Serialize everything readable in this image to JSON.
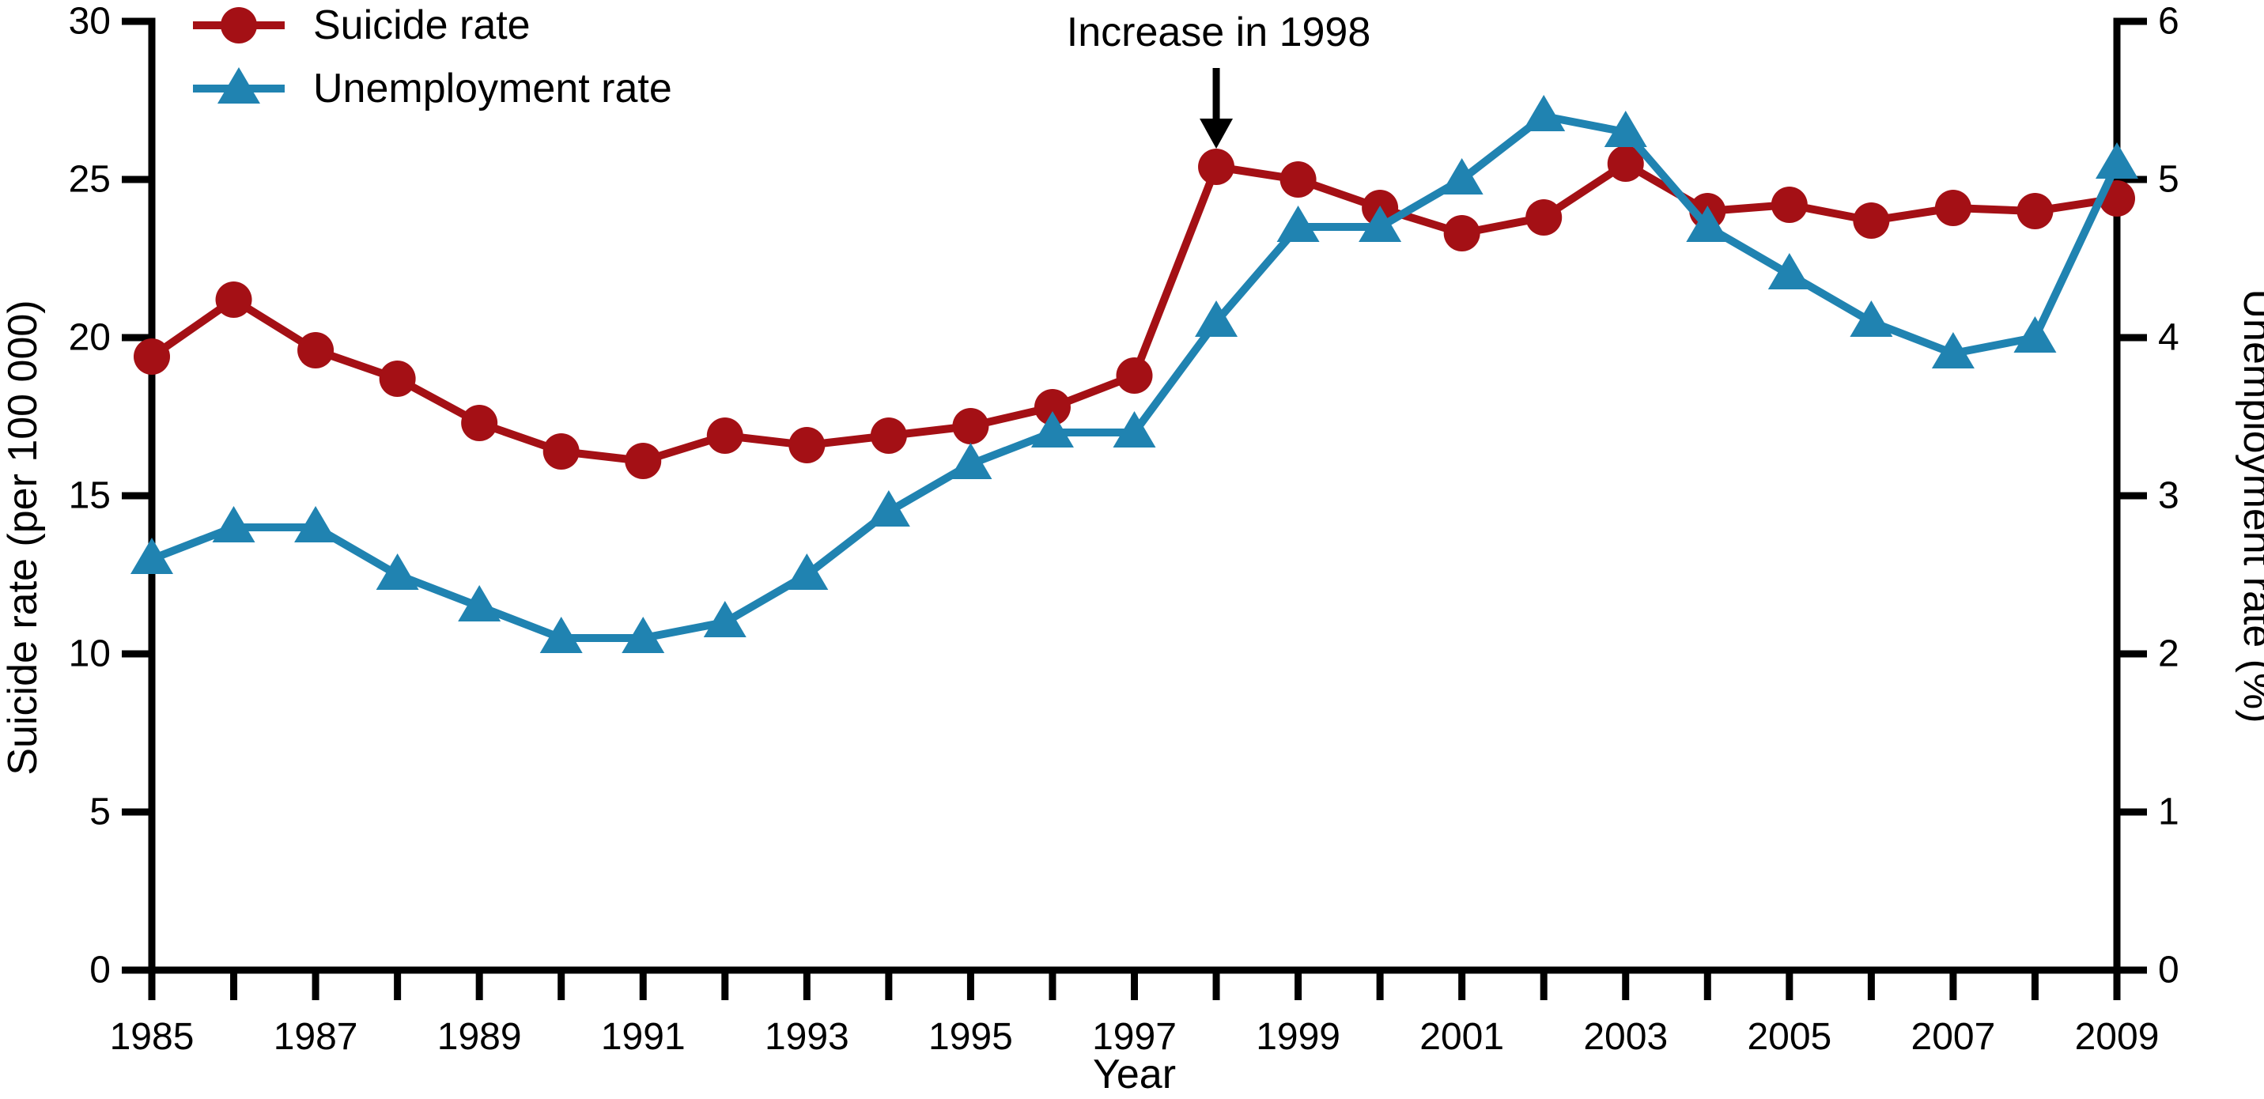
{
  "chart_data": {
    "type": "line",
    "title": "",
    "xlabel": "Year",
    "x": [
      1985,
      1986,
      1987,
      1988,
      1989,
      1990,
      1991,
      1992,
      1993,
      1994,
      1995,
      1996,
      1997,
      1998,
      1999,
      2000,
      2001,
      2002,
      2003,
      2004,
      2005,
      2006,
      2007,
      2008,
      2009
    ],
    "x_tick_labels": [
      "1985",
      "1987",
      "1989",
      "1991",
      "1993",
      "1995",
      "1997",
      "1999",
      "2001",
      "2003",
      "2005",
      "2007",
      "2009"
    ],
    "x_range": [
      1985,
      2009
    ],
    "grid": false,
    "legend_position": "top-left",
    "left_axis": {
      "label": "Suicide rate (per 100 000)",
      "min": 0,
      "max": 30,
      "ticks": [
        "0",
        "5",
        "10",
        "15",
        "20",
        "25",
        "30"
      ],
      "tick_values": [
        0,
        5,
        10,
        15,
        20,
        25,
        30
      ]
    },
    "right_axis": {
      "label": "Unemployment rate (%)",
      "min": 0,
      "max": 6,
      "ticks": [
        "0",
        "1",
        "2",
        "3",
        "4",
        "5",
        "6"
      ],
      "tick_values": [
        0,
        1,
        2,
        3,
        4,
        5,
        6
      ]
    },
    "series": [
      {
        "name": "Suicide rate",
        "axis": "left",
        "marker": "circle",
        "color": "#a41015",
        "values": [
          19.4,
          21.2,
          19.6,
          18.7,
          17.3,
          16.4,
          16.1,
          16.9,
          16.6,
          16.9,
          17.2,
          17.8,
          18.8,
          25.4,
          25.0,
          24.1,
          23.3,
          23.8,
          25.5,
          24.0,
          24.2,
          23.7,
          24.1,
          24.0,
          24.4
        ]
      },
      {
        "name": "Unemployment rate",
        "axis": "right",
        "marker": "triangle",
        "color": "#2083b1",
        "values": [
          2.6,
          2.8,
          2.8,
          2.5,
          2.3,
          2.1,
          2.1,
          2.2,
          2.5,
          2.9,
          3.2,
          3.4,
          3.4,
          4.1,
          4.7,
          4.7,
          5.0,
          5.4,
          5.3,
          4.7,
          4.4,
          4.1,
          3.9,
          4.0,
          5.1
        ]
      }
    ],
    "annotation": {
      "text": "Increase in 1998",
      "target_year": 1998,
      "target_series": "Suicide rate",
      "arrow": "down"
    },
    "colors": {
      "axis": "#000000",
      "annotation_arrow": "#000000",
      "background": "#ffffff"
    }
  }
}
